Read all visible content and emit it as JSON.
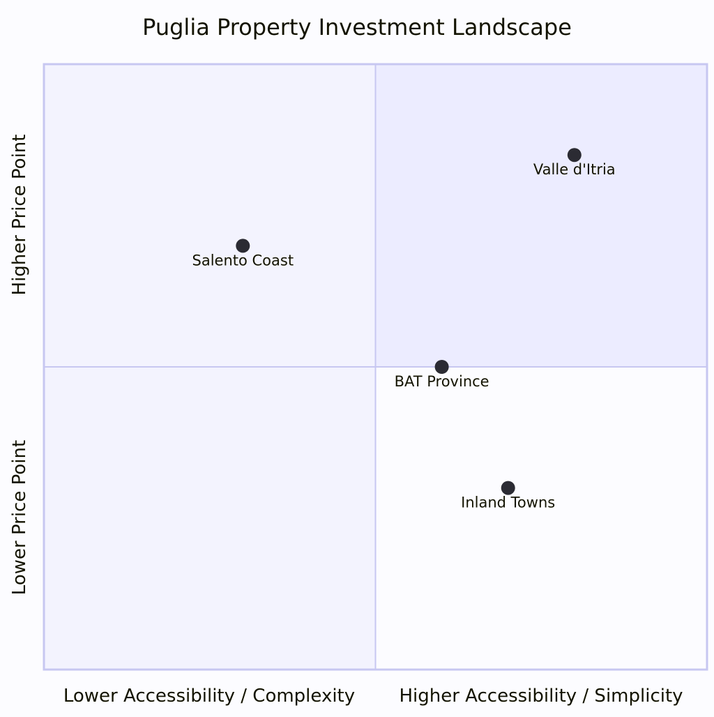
{
  "chart_data": {
    "type": "scatter",
    "subtype": "quadrant",
    "title": "Puglia Property Investment Landscape",
    "x_axis": {
      "low": "Lower Accessibility / Complexity",
      "high": "Higher Accessibility / Simplicity"
    },
    "y_axis": {
      "low": "Lower Price Point",
      "high": "Higher Price Point"
    },
    "xlim": [
      0,
      1
    ],
    "ylim": [
      0,
      1
    ],
    "points": [
      {
        "label": "Valle d'Itria",
        "x": 0.8,
        "y": 0.85
      },
      {
        "label": "Salento Coast",
        "x": 0.3,
        "y": 0.7
      },
      {
        "label": "BAT Province",
        "x": 0.6,
        "y": 0.5
      },
      {
        "label": "Inland Towns",
        "x": 0.7,
        "y": 0.3
      }
    ],
    "colors": {
      "quadrant_top_right": "#ececff",
      "quadrant_top_left": "#f3f3fe",
      "quadrant_bottom_left": "#f3f3fe",
      "quadrant_bottom_right": "#fcfcff",
      "border": "#c7c7f1",
      "point": "#2b2b33"
    }
  }
}
